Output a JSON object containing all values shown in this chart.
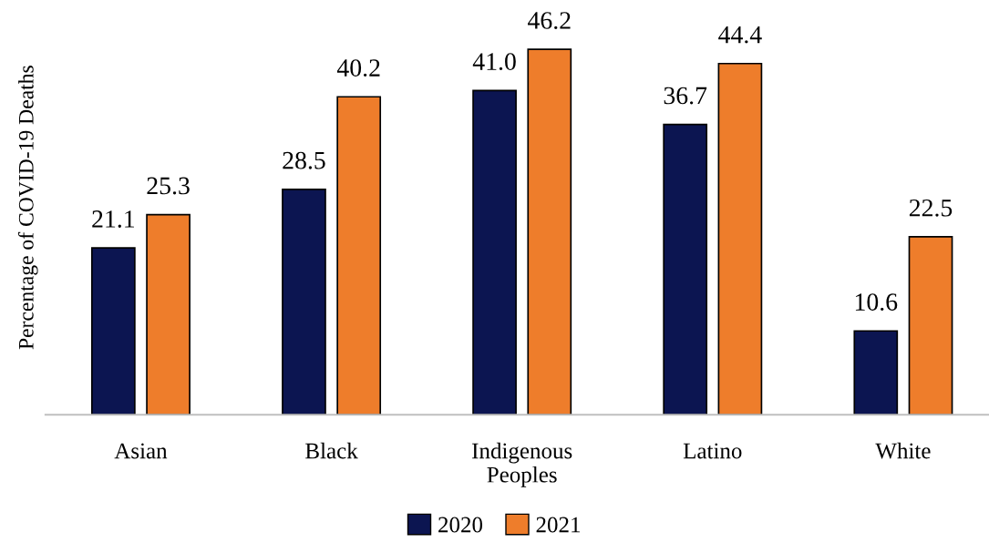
{
  "chart_data": {
    "type": "bar",
    "ylabel": "Percentage of COVID-19 Deaths",
    "categories": [
      "Asian",
      "Black",
      "Indigenous\nPeoples",
      "Latino",
      "White"
    ],
    "series": [
      {
        "name": "2020",
        "color": "#0c1551",
        "values": [
          21.1,
          28.5,
          41.0,
          36.7,
          10.6
        ],
        "value_labels": [
          "21.1",
          "28.5",
          "41.0",
          "36.7",
          "10.6"
        ]
      },
      {
        "name": "2021",
        "color": "#ee7d2b",
        "values": [
          25.3,
          40.2,
          46.2,
          44.4,
          22.5
        ],
        "value_labels": [
          "25.3",
          "40.2",
          "46.2",
          "44.4",
          "22.5"
        ]
      }
    ],
    "legend": "bottom",
    "grid": false
  }
}
